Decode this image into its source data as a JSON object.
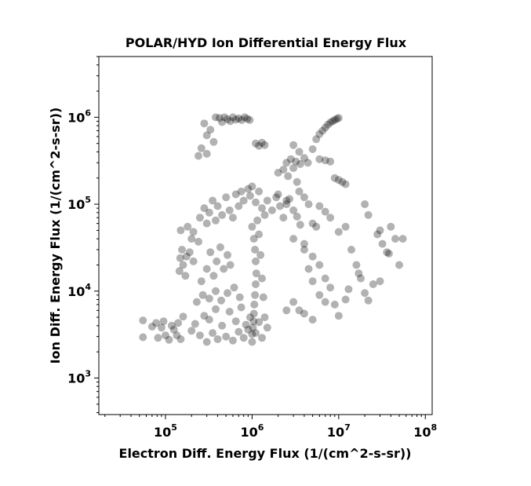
{
  "chart_data": {
    "type": "scatter",
    "title": "POLAR/HYD  Ion Differential Energy Flux",
    "xlabel": "Electron Diff. Energy Flux (1/(cm^2-s-sr))",
    "ylabel": "Ion Diff. Energy Flux (1/(cm^2-s-sr))",
    "x_scale": "log",
    "y_scale": "log",
    "xlim": [
      17000,
      120000000
    ],
    "ylim": [
      380,
      5000000
    ],
    "x_ticks": [
      {
        "value": 100000,
        "base": "10",
        "exp": "5"
      },
      {
        "value": 1000000,
        "base": "10",
        "exp": "6"
      },
      {
        "value": 10000000,
        "base": "10",
        "exp": "7"
      },
      {
        "value": 100000000,
        "base": "10",
        "exp": "8"
      }
    ],
    "y_ticks": [
      {
        "value": 1000,
        "base": "10",
        "exp": "3"
      },
      {
        "value": 10000,
        "base": "10",
        "exp": "4"
      },
      {
        "value": 100000,
        "base": "10",
        "exp": "5"
      },
      {
        "value": 1000000,
        "base": "10",
        "exp": "6"
      }
    ],
    "grid": false,
    "marker_color": "#000000",
    "marker_alpha": 0.3,
    "series": [
      {
        "points": [
          [
            55000,
            4600
          ],
          [
            55000,
            2950
          ],
          [
            70000,
            3900
          ],
          [
            78000,
            4300
          ],
          [
            82000,
            2900
          ],
          [
            90000,
            3800
          ],
          [
            95000,
            4500
          ],
          [
            100000,
            3100
          ],
          [
            110000,
            2750
          ],
          [
            118000,
            4000
          ],
          [
            125000,
            3600
          ],
          [
            135000,
            3100
          ],
          [
            140000,
            4300
          ],
          [
            150000,
            2800
          ],
          [
            160000,
            5100
          ],
          [
            148000,
            24000
          ],
          [
            145000,
            17000
          ],
          [
            155000,
            30000
          ],
          [
            160000,
            20000
          ],
          [
            170000,
            15000
          ],
          [
            175000,
            25000
          ],
          [
            190000,
            28000
          ],
          [
            200000,
            40000
          ],
          [
            210000,
            22000
          ],
          [
            150000,
            50000
          ],
          [
            180000,
            55000
          ],
          [
            210000,
            48000
          ],
          [
            240000,
            37000
          ],
          [
            260000,
            13000
          ],
          [
            300000,
            18000
          ],
          [
            330000,
            28000
          ],
          [
            360000,
            15000
          ],
          [
            390000,
            22000
          ],
          [
            430000,
            32000
          ],
          [
            470000,
            18000
          ],
          [
            520000,
            26000
          ],
          [
            560000,
            20000
          ],
          [
            250000,
            70000
          ],
          [
            280000,
            90000
          ],
          [
            300000,
            60000
          ],
          [
            320000,
            80000
          ],
          [
            350000,
            110000
          ],
          [
            380000,
            65000
          ],
          [
            400000,
            95000
          ],
          [
            450000,
            75000
          ],
          [
            500000,
            120000
          ],
          [
            550000,
            85000
          ],
          [
            600000,
            70000
          ],
          [
            650000,
            130000
          ],
          [
            700000,
            95000
          ],
          [
            750000,
            140000
          ],
          [
            800000,
            110000
          ],
          [
            900000,
            150000
          ],
          [
            950000,
            125000
          ],
          [
            1000000,
            160000
          ],
          [
            1100000,
            105000
          ],
          [
            1200000,
            140000
          ],
          [
            1300000,
            90000
          ],
          [
            1400000,
            75000
          ],
          [
            1500000,
            110000
          ],
          [
            1700000,
            85000
          ],
          [
            1900000,
            120000
          ],
          [
            2100000,
            95000
          ],
          [
            2300000,
            70000
          ],
          [
            2500000,
            100000
          ],
          [
            2700000,
            115000
          ],
          [
            3000000,
            85000
          ],
          [
            3300000,
            72000
          ],
          [
            3600000,
            58000
          ],
          [
            1000000,
            55000
          ],
          [
            1050000,
            40000
          ],
          [
            1080000,
            30000
          ],
          [
            1100000,
            22000
          ],
          [
            1120000,
            16000
          ],
          [
            1100000,
            12000
          ],
          [
            1080000,
            9000
          ],
          [
            1060000,
            7000
          ],
          [
            1050000,
            5500
          ],
          [
            1040000,
            4500
          ],
          [
            1020000,
            3800
          ],
          [
            1000000,
            3200
          ],
          [
            1150000,
            65000
          ],
          [
            1200000,
            45000
          ],
          [
            1250000,
            26000
          ],
          [
            1300000,
            14000
          ],
          [
            1350000,
            8500
          ],
          [
            1400000,
            5000
          ],
          [
            200000,
            3500
          ],
          [
            220000,
            4200
          ],
          [
            250000,
            3100
          ],
          [
            280000,
            5200
          ],
          [
            300000,
            2600
          ],
          [
            320000,
            4700
          ],
          [
            350000,
            3300
          ],
          [
            380000,
            6200
          ],
          [
            400000,
            2800
          ],
          [
            450000,
            4000
          ],
          [
            500000,
            3000
          ],
          [
            550000,
            5800
          ],
          [
            600000,
            2700
          ],
          [
            650000,
            4500
          ],
          [
            700000,
            3400
          ],
          [
            750000,
            6500
          ],
          [
            800000,
            2900
          ],
          [
            850000,
            4100
          ],
          [
            900000,
            3600
          ],
          [
            950000,
            5000
          ],
          [
            1000000,
            2600
          ],
          [
            1100000,
            3300
          ],
          [
            1200000,
            4400
          ],
          [
            1300000,
            2900
          ],
          [
            1500000,
            3800
          ],
          [
            230000,
            7500
          ],
          [
            270000,
            9000
          ],
          [
            320000,
            8200
          ],
          [
            380000,
            10000
          ],
          [
            440000,
            7800
          ],
          [
            520000,
            9500
          ],
          [
            620000,
            11000
          ],
          [
            720000,
            8500
          ],
          [
            280000,
            850000
          ],
          [
            300000,
            620000
          ],
          [
            330000,
            720000
          ],
          [
            360000,
            520000
          ],
          [
            380000,
            1000000
          ],
          [
            420000,
            980000
          ],
          [
            450000,
            880000
          ],
          [
            480000,
            1000000
          ],
          [
            520000,
            950000
          ],
          [
            560000,
            900000
          ],
          [
            600000,
            1000000
          ],
          [
            650000,
            940000
          ],
          [
            700000,
            970000
          ],
          [
            760000,
            930000
          ],
          [
            820000,
            1000000
          ],
          [
            880000,
            960000
          ],
          [
            940000,
            930000
          ],
          [
            260000,
            440000
          ],
          [
            300000,
            380000
          ],
          [
            240000,
            360000
          ],
          [
            1100000,
            500000
          ],
          [
            1200000,
            470000
          ],
          [
            1300000,
            510000
          ],
          [
            1400000,
            480000
          ],
          [
            2500000,
            300000
          ],
          [
            2800000,
            330000
          ],
          [
            3200000,
            310000
          ],
          [
            3600000,
            290000
          ],
          [
            4000000,
            340000
          ],
          [
            4400000,
            300000
          ],
          [
            5000000,
            430000
          ],
          [
            5500000,
            560000
          ],
          [
            6000000,
            640000
          ],
          [
            6500000,
            700000
          ],
          [
            7000000,
            760000
          ],
          [
            7500000,
            820000
          ],
          [
            8000000,
            870000
          ],
          [
            8500000,
            900000
          ],
          [
            9000000,
            930000
          ],
          [
            9500000,
            960000
          ],
          [
            10000000,
            980000
          ],
          [
            3000000,
            480000
          ],
          [
            3500000,
            400000
          ],
          [
            6000000,
            330000
          ],
          [
            7000000,
            320000
          ],
          [
            8000000,
            310000
          ],
          [
            9000000,
            200000
          ],
          [
            10000000,
            190000
          ],
          [
            11000000,
            180000
          ],
          [
            12000000,
            170000
          ],
          [
            2000000,
            230000
          ],
          [
            2300000,
            250000
          ],
          [
            2600000,
            210000
          ],
          [
            3000000,
            260000
          ],
          [
            3300000,
            180000
          ],
          [
            2000000,
            130000
          ],
          [
            2500000,
            110000
          ],
          [
            3500000,
            140000
          ],
          [
            4000000,
            120000
          ],
          [
            4500000,
            100000
          ],
          [
            5000000,
            60000
          ],
          [
            5500000,
            55000
          ],
          [
            6000000,
            95000
          ],
          [
            7000000,
            82000
          ],
          [
            8000000,
            70000
          ],
          [
            3000000,
            40000
          ],
          [
            4000000,
            35000
          ],
          [
            5000000,
            25000
          ],
          [
            6000000,
            20000
          ],
          [
            7000000,
            14000
          ],
          [
            8000000,
            11000
          ],
          [
            9000000,
            7000
          ],
          [
            10000000,
            5200
          ],
          [
            4000000,
            30000
          ],
          [
            4500000,
            18000
          ],
          [
            5000000,
            13000
          ],
          [
            6000000,
            9000
          ],
          [
            7000000,
            7500
          ],
          [
            3500000,
            6000
          ],
          [
            4000000,
            5500
          ],
          [
            5000000,
            4700
          ],
          [
            3000000,
            7500
          ],
          [
            2500000,
            6000
          ],
          [
            10000000,
            48000
          ],
          [
            12000000,
            55000
          ],
          [
            14000000,
            30000
          ],
          [
            16000000,
            20000
          ],
          [
            18000000,
            14000
          ],
          [
            20000000,
            9500
          ],
          [
            22000000,
            7800
          ],
          [
            25000000,
            12000
          ],
          [
            17000000,
            16000
          ],
          [
            20000000,
            100000
          ],
          [
            22000000,
            75000
          ],
          [
            28000000,
            45000
          ],
          [
            30000000,
            50000
          ],
          [
            32000000,
            35000
          ],
          [
            36000000,
            28000
          ],
          [
            40000000,
            55000
          ],
          [
            45000000,
            40000
          ],
          [
            55000000,
            40000
          ],
          [
            50000000,
            20000
          ],
          [
            30000000,
            13000
          ],
          [
            38000000,
            27000
          ],
          [
            12000000,
            8000
          ],
          [
            13000000,
            10500
          ]
        ]
      }
    ]
  }
}
